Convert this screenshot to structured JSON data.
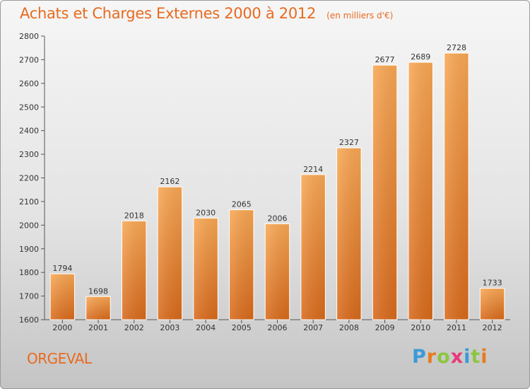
{
  "title": "Achats et Charges Externes 2000 à 2012",
  "subtitle": "(en milliers d'€)",
  "city": "ORGEVAL",
  "brand": {
    "text": "Proxiti",
    "letter_colors": [
      "#3a9ad9",
      "#e87b1f",
      "#8cc63f",
      "#e83a7a",
      "#3a9ad9",
      "#8cc63f",
      "#e87b1f"
    ]
  },
  "colors": {
    "title": "#e86a1f",
    "bar_top": "#f8a855",
    "bar_bottom": "#d86a1c"
  },
  "chart_data": {
    "type": "bar",
    "title": "Achats et Charges Externes 2000 à 2012",
    "subtitle": "(en milliers d'€)",
    "xlabel": "",
    "ylabel": "",
    "categories": [
      "2000",
      "2001",
      "2002",
      "2003",
      "2004",
      "2005",
      "2006",
      "2007",
      "2008",
      "2009",
      "2010",
      "2011",
      "2012"
    ],
    "values": [
      1794,
      1698,
      2018,
      2162,
      2030,
      2065,
      2006,
      2214,
      2327,
      2677,
      2689,
      2728,
      1733
    ],
    "ylim": [
      1600,
      2800
    ],
    "yticks": [
      1600,
      1700,
      1800,
      1900,
      2000,
      2100,
      2200,
      2300,
      2400,
      2500,
      2600,
      2700,
      2800
    ],
    "grid": false,
    "data_labels": true
  }
}
